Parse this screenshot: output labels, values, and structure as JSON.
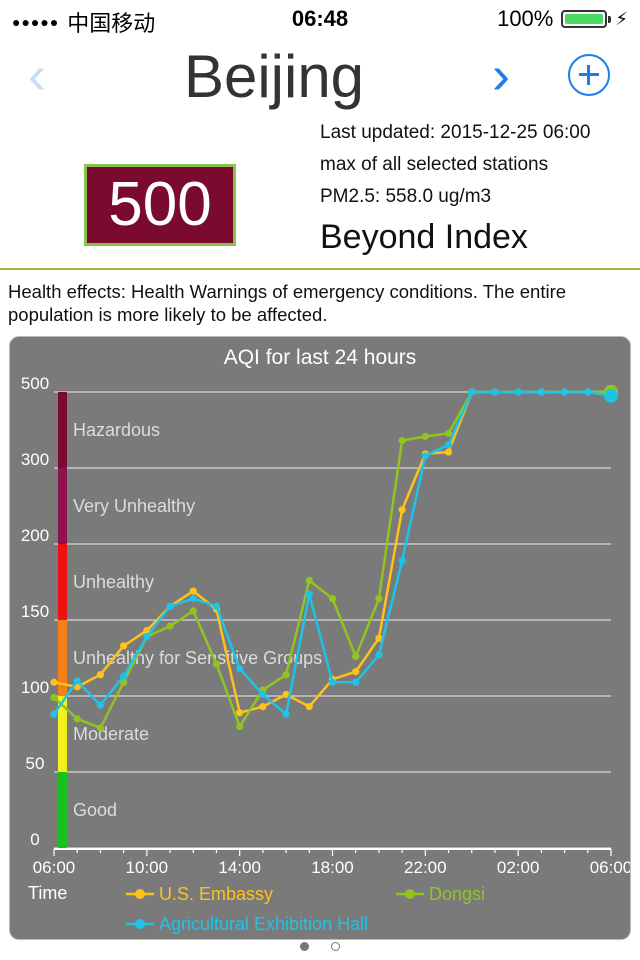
{
  "statusbar": {
    "signal": "●●●●●",
    "carrier": "中国移动",
    "time": "06:48",
    "battery": "100%"
  },
  "nav": {
    "prev": "‹",
    "title": "Beijing",
    "next": "›"
  },
  "aqi": {
    "value": "500",
    "updated": "Last updated: 2015-12-25 06:00",
    "scope": "max of all selected stations",
    "pm25": "PM2.5: 558.0 ug/m3",
    "level": "Beyond Index",
    "box_color": "#7a0a2e",
    "box_border": "#8bc34a"
  },
  "health": "Health effects: Health Warnings of emergency conditions. The entire population is more likely to be affected.",
  "chart_data": {
    "type": "line",
    "title": "AQI for last 24 hours",
    "xlabel": "Time",
    "y_ticks": [
      "0",
      "50",
      "100",
      "150",
      "200",
      "300",
      "500"
    ],
    "x_ticks": [
      "06:00",
      "10:00",
      "14:00",
      "18:00",
      "22:00",
      "02:00",
      "06:00"
    ],
    "bands": [
      {
        "name": "Good",
        "from": 0,
        "to": 50,
        "color": "#19c21b"
      },
      {
        "name": "Moderate",
        "from": 50,
        "to": 100,
        "color": "#f2f21a"
      },
      {
        "name": "Unhealthy for Sensitive Groups",
        "from": 100,
        "to": 150,
        "color": "#f57f19"
      },
      {
        "name": "Unhealthy",
        "from": 150,
        "to": 200,
        "color": "#ee1313"
      },
      {
        "name": "Very Unhealthy",
        "from": 200,
        "to": 300,
        "color": "#8d1350"
      },
      {
        "name": "Hazardous",
        "from": 300,
        "to": 500,
        "color": "#7a0a2e"
      }
    ],
    "x_hours": [
      0,
      1,
      2,
      3,
      4,
      5,
      6,
      7,
      8,
      9,
      10,
      11,
      12,
      13,
      14,
      15,
      16,
      17,
      18,
      19,
      20,
      21,
      22,
      23,
      24
    ],
    "series": [
      {
        "name": "U.S. Embassy",
        "color": "#ffc21a",
        "values": [
          109,
          106,
          114,
          133,
          143,
          159,
          169,
          157,
          89,
          93,
          101,
          93,
          111,
          116,
          138,
          245,
          337,
          342,
          500,
          500,
          500,
          500,
          500,
          500,
          500
        ]
      },
      {
        "name": "Dongsi",
        "color": "#92c41f",
        "values": [
          99,
          85,
          79,
          109,
          139,
          146,
          156,
          121,
          80,
          104,
          114,
          176,
          164,
          126,
          164,
          372,
          383,
          391,
          500,
          500,
          500,
          500,
          500,
          500,
          500
        ]
      },
      {
        "name": "Agricultural Exhibition Hall",
        "color": "#1ec3e8",
        "values": [
          88,
          110,
          94,
          113,
          139,
          159,
          164,
          159,
          118,
          101,
          88,
          167,
          109,
          109,
          127,
          189,
          332,
          361,
          500,
          500,
          500,
          500,
          500,
          500,
          490
        ]
      }
    ]
  },
  "pager": {
    "pages": 2,
    "active": 0
  }
}
